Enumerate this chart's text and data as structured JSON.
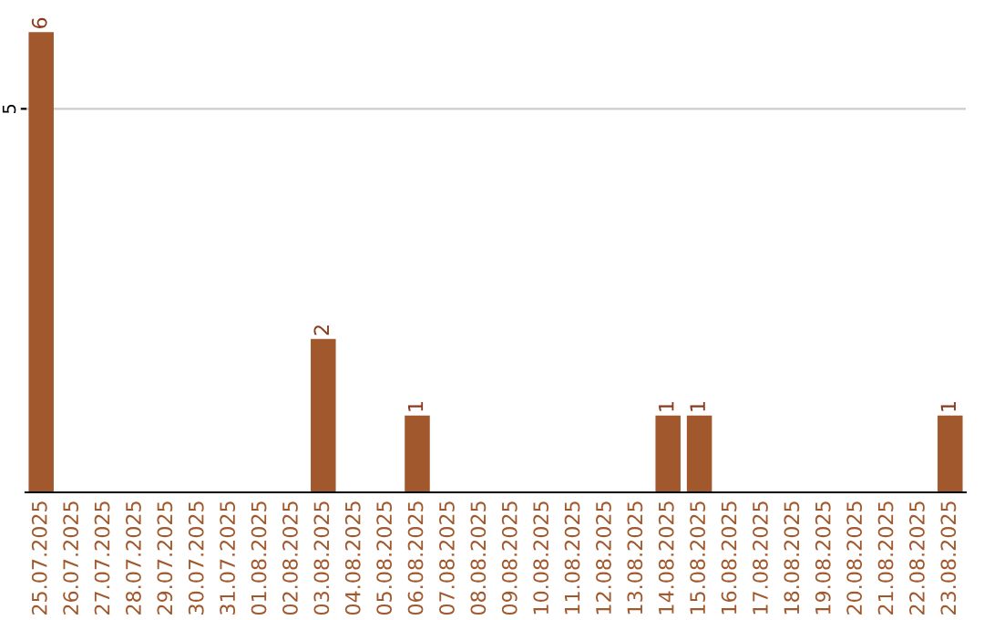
{
  "chart_data": {
    "type": "bar",
    "categories": [
      "25.07.2025",
      "26.07.2025",
      "27.07.2025",
      "28.07.2025",
      "29.07.2025",
      "30.07.2025",
      "31.07.2025",
      "01.08.2025",
      "02.08.2025",
      "03.08.2025",
      "04.08.2025",
      "05.08.2025",
      "06.08.2025",
      "07.08.2025",
      "08.08.2025",
      "09.08.2025",
      "10.08.2025",
      "11.08.2025",
      "12.08.2025",
      "13.08.2025",
      "14.08.2025",
      "15.08.2025",
      "16.08.2025",
      "17.08.2025",
      "18.08.2025",
      "19.08.2025",
      "20.08.2025",
      "21.08.2025",
      "22.08.2025",
      "23.08.2025"
    ],
    "values": [
      6,
      0,
      0,
      0,
      0,
      0,
      0,
      0,
      0,
      2,
      0,
      0,
      1,
      0,
      0,
      0,
      0,
      0,
      0,
      0,
      1,
      1,
      0,
      0,
      0,
      0,
      0,
      0,
      0,
      1
    ],
    "value_labels": [
      "6",
      null,
      null,
      null,
      null,
      null,
      null,
      null,
      null,
      "2",
      null,
      null,
      "1",
      null,
      null,
      null,
      null,
      null,
      null,
      null,
      "1",
      "1",
      null,
      null,
      null,
      null,
      null,
      null,
      null,
      "1"
    ],
    "color": "#a0582c",
    "ref_lines": [
      {
        "axis": "y",
        "value": 5,
        "label": "5",
        "color": "#cccccc"
      }
    ]
  }
}
